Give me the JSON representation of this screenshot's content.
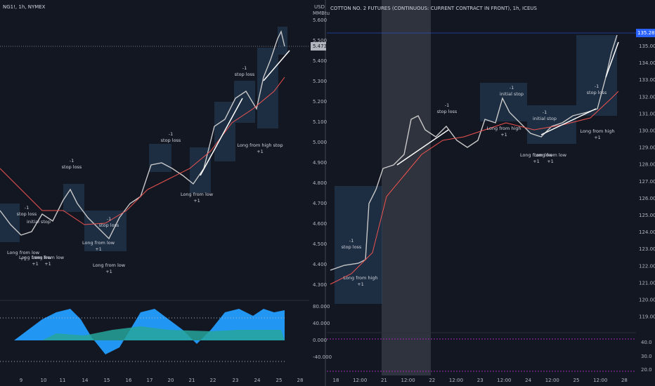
{
  "left_chart": {
    "symbol": "NG1!, 1h, NYMEX",
    "currency": "USD",
    "unit": "MMBtu",
    "price_labels": [
      "5.600",
      "5.500",
      "5.400",
      "5.300",
      "5.200",
      "5.100",
      "5.000",
      "4.900",
      "4.800",
      "4.700",
      "4.600",
      "4.500",
      "4.400",
      "4.300"
    ],
    "last_price": "5.473",
    "indicator_labels": [
      "80.000",
      "40.000",
      "0.000",
      "-40.000"
    ],
    "time_labels": [
      "9",
      "10",
      "11",
      "14",
      "15",
      "16",
      "17",
      "20",
      "21",
      "22",
      "23",
      "24",
      "25",
      "28"
    ],
    "annotations": [
      {
        "lines": [
          "-1",
          "stop loss"
        ]
      },
      {
        "lines": [
          "-1",
          "stop loss"
        ]
      },
      {
        "lines": [
          "initial stop"
        ]
      },
      {
        "lines": [
          "-1",
          "stop loss"
        ]
      },
      {
        "lines": [
          "-1",
          "stop loss"
        ]
      },
      {
        "lines": [
          "-1",
          "stop loss"
        ]
      },
      {
        "lines": [
          "Long from low",
          "+1"
        ]
      },
      {
        "lines": [
          "Long from low",
          "+1"
        ]
      },
      {
        "lines": [
          "Long from low",
          "+1"
        ]
      },
      {
        "lines": [
          "Long from low",
          "+1"
        ]
      },
      {
        "lines": [
          "Long from low",
          "+1"
        ]
      },
      {
        "lines": [
          "Long from low",
          "+1"
        ]
      },
      {
        "lines": [
          "Long from high stop",
          "+1"
        ]
      }
    ]
  },
  "right_chart": {
    "symbol": "COTTON NO. 2 FUTURES (CONTINUOUS: CURRENT CONTRACT IN FRONT), 1h, ICEUS",
    "price_labels": [
      "135.00",
      "134.00",
      "133.00",
      "132.00",
      "131.00",
      "130.00",
      "129.00",
      "128.00",
      "127.00",
      "126.00",
      "125.00",
      "124.00",
      "123.00",
      "122.00",
      "121.00",
      "120.00",
      "119.00"
    ],
    "last_price": "135.28",
    "indicator_labels": [
      "40.0",
      "30.0",
      "20.0"
    ],
    "time_labels": [
      "18",
      "12:00",
      "21",
      "12:00",
      "22",
      "12:00",
      "23",
      "12:00",
      "24",
      "12:00",
      "25",
      "12:00",
      "28"
    ],
    "annotations": [
      {
        "lines": [
          "-1",
          "stop loss"
        ]
      },
      {
        "lines": [
          "Long from high",
          "+1"
        ]
      },
      {
        "lines": [
          "-1",
          "stop loss"
        ]
      },
      {
        "lines": [
          "-1",
          "initial stop"
        ]
      },
      {
        "lines": [
          "Long from high",
          "+1"
        ]
      },
      {
        "lines": [
          "-1",
          "initial stop"
        ]
      },
      {
        "lines": [
          "Long from low",
          "+1"
        ]
      },
      {
        "lines": [
          "Long from low",
          "+1"
        ]
      },
      {
        "lines": [
          "-1",
          "stop loss"
        ]
      },
      {
        "lines": [
          "Long from high",
          "+1"
        ]
      }
    ]
  }
}
